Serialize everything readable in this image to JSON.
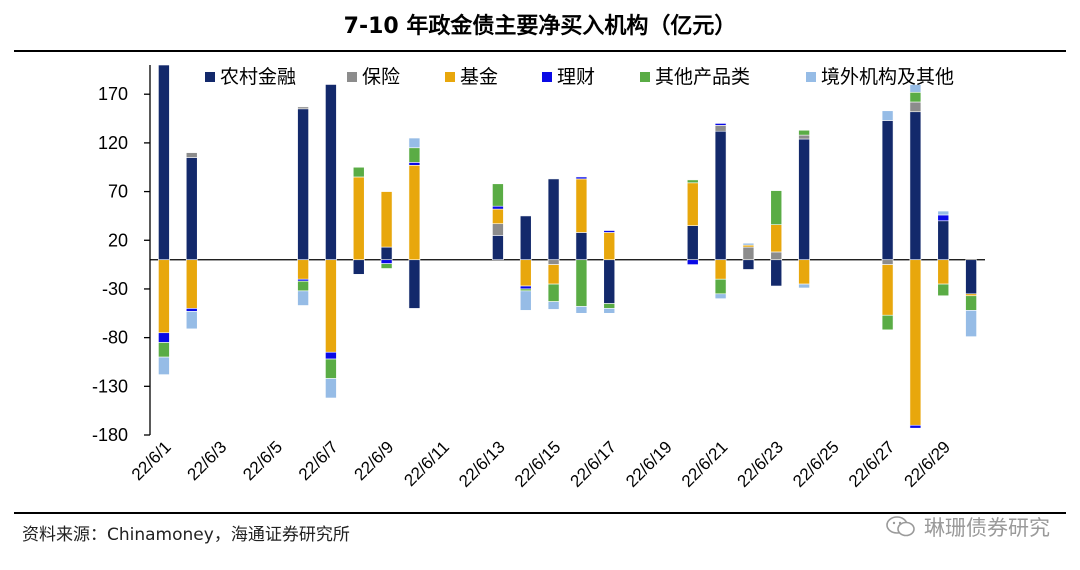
{
  "title": "7-10 年政金债主要净买入机构（亿元）",
  "source": "资料来源：Chinamoney，海通证券研究所",
  "watermark": "琳珊债券研究",
  "chart_data": {
    "type": "bar",
    "stacked": true,
    "title": "7-10 年政金债主要净买入机构（亿元）",
    "xlabel": "",
    "ylabel": "",
    "ylim": [
      -180,
      200
    ],
    "yticks": [
      170,
      120,
      70,
      20,
      -30,
      -80,
      -130,
      -180
    ],
    "legend_position": "top",
    "categories": [
      "22/6/1",
      "22/6/2",
      "22/6/3",
      "22/6/4",
      "22/6/5",
      "22/6/6",
      "22/6/7",
      "22/6/8",
      "22/6/9",
      "22/6/10",
      "22/6/11",
      "22/6/12",
      "22/6/13",
      "22/6/14",
      "22/6/15",
      "22/6/16",
      "22/6/17",
      "22/6/18",
      "22/6/19",
      "22/6/20",
      "22/6/21",
      "22/6/22",
      "22/6/23",
      "22/6/24",
      "22/6/25",
      "22/6/26",
      "22/6/27",
      "22/6/28",
      "22/6/29",
      "22/6/30"
    ],
    "xtick_labels": [
      "22/6/1",
      "22/6/3",
      "22/6/5",
      "22/6/7",
      "22/6/9",
      "22/6/11",
      "22/6/13",
      "22/6/15",
      "22/6/17",
      "22/6/19",
      "22/6/21",
      "22/6/23",
      "22/6/25",
      "22/6/27",
      "22/6/29"
    ],
    "series": [
      {
        "name": "农村金融",
        "color": "#13296b",
        "values": [
          200,
          105,
          0,
          0,
          0,
          155,
          180,
          -15,
          13,
          -50,
          0,
          0,
          25,
          45,
          83,
          28,
          -45,
          0,
          0,
          35,
          132,
          -10,
          -27,
          124,
          0,
          0,
          143,
          152,
          40,
          -35
        ]
      },
      {
        "name": "保险",
        "color": "#8c8c8c",
        "values": [
          0,
          5,
          0,
          0,
          0,
          2,
          0,
          0,
          0,
          0,
          0,
          0,
          12,
          0,
          -5,
          0,
          0,
          0,
          0,
          0,
          6,
          13,
          8,
          4,
          0,
          0,
          -5,
          10,
          0,
          0
        ]
      },
      {
        "name": "基金",
        "color": "#e8a70c",
        "values": [
          -75,
          -50,
          0,
          0,
          0,
          -20,
          -95,
          85,
          57,
          97,
          0,
          0,
          15,
          -27,
          -20,
          55,
          28,
          0,
          0,
          44,
          -20,
          2,
          28,
          -25,
          0,
          0,
          -52,
          -170,
          -25,
          -2
        ]
      },
      {
        "name": "理财",
        "color": "#0a0ae6",
        "values": [
          -10,
          -3,
          0,
          0,
          0,
          -2,
          -7,
          0,
          -4,
          3,
          0,
          0,
          3,
          -3,
          0,
          2,
          2,
          0,
          0,
          -5,
          2,
          0,
          0,
          0,
          0,
          0,
          0,
          -3,
          6,
          0
        ]
      },
      {
        "name": "其他产品类",
        "color": "#5aac45",
        "values": [
          -15,
          0,
          0,
          0,
          0,
          -10,
          -20,
          10,
          -5,
          15,
          0,
          0,
          23,
          -2,
          -18,
          -48,
          -5,
          0,
          0,
          3,
          -15,
          0,
          35,
          5,
          0,
          0,
          -15,
          10,
          -12,
          -15
        ]
      },
      {
        "name": "境外机构及其他",
        "color": "#96bce6",
        "values": [
          -18,
          -18,
          0,
          0,
          0,
          -15,
          -20,
          0,
          0,
          10,
          0,
          0,
          0,
          -20,
          -8,
          -7,
          -5,
          0,
          0,
          0,
          -5,
          2,
          0,
          -4,
          0,
          0,
          10,
          8,
          4,
          -27
        ]
      }
    ]
  }
}
